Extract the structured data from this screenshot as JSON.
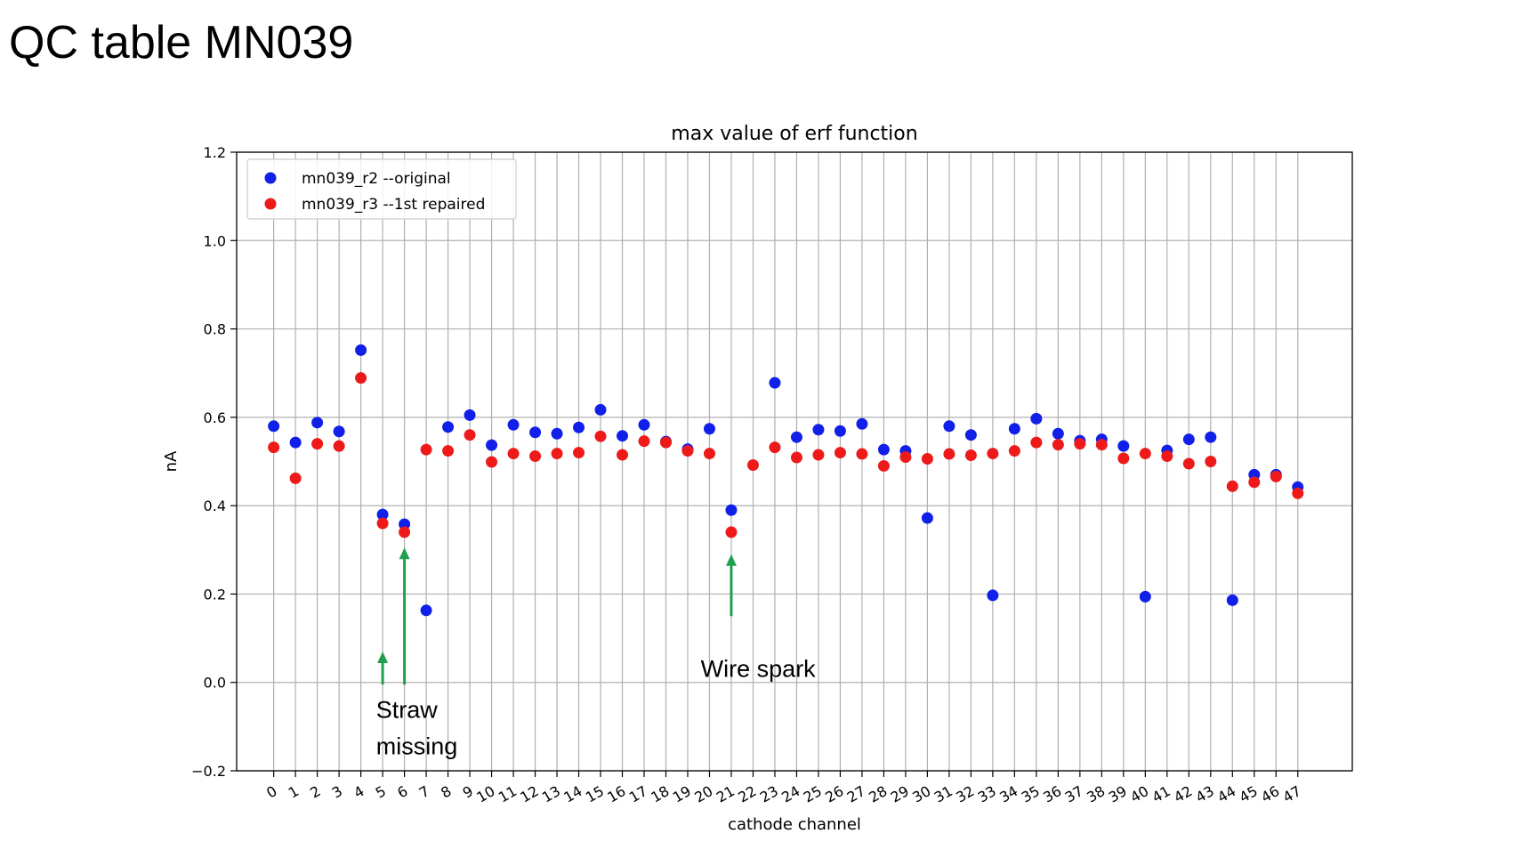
{
  "slide": {
    "title": "QC table MN039"
  },
  "chart_data": {
    "type": "scatter",
    "title": "max value of erf function",
    "xlabel": "cathode channel",
    "ylabel": "nA",
    "ylim": [
      -0.2,
      1.2
    ],
    "yticks": [
      -0.2,
      0.0,
      0.2,
      0.4,
      0.6,
      0.8,
      1.0,
      1.2
    ],
    "ytick_labels": [
      "−0.2",
      "0.0",
      "0.2",
      "0.4",
      "0.6",
      "0.8",
      "1.0",
      "1.2"
    ],
    "xticks": [
      0,
      1,
      2,
      3,
      4,
      5,
      6,
      7,
      8,
      9,
      10,
      11,
      12,
      13,
      14,
      15,
      16,
      17,
      18,
      19,
      20,
      21,
      22,
      23,
      24,
      25,
      26,
      27,
      28,
      29,
      30,
      31,
      32,
      33,
      34,
      35,
      36,
      37,
      38,
      39,
      40,
      41,
      42,
      43,
      44,
      45,
      46,
      47
    ],
    "xlim": [
      -1.7,
      49.5
    ],
    "grid": true,
    "legend_position": "top-left",
    "series": [
      {
        "name": "mn039_r2 --original",
        "color": "#1020e8",
        "points": [
          [
            0,
            0.58
          ],
          [
            1,
            0.543
          ],
          [
            2,
            0.588
          ],
          [
            3,
            0.568
          ],
          [
            4,
            0.752
          ],
          [
            5,
            0.38
          ],
          [
            6,
            0.358
          ],
          [
            7,
            0.163
          ],
          [
            8,
            0.578
          ],
          [
            9,
            0.605
          ],
          [
            10,
            0.537
          ],
          [
            11,
            0.583
          ],
          [
            12,
            0.566
          ],
          [
            13,
            0.563
          ],
          [
            14,
            0.577
          ],
          [
            15,
            0.617
          ],
          [
            16,
            0.558
          ],
          [
            17,
            0.583
          ],
          [
            18,
            0.545
          ],
          [
            19,
            0.528
          ],
          [
            20,
            0.574
          ],
          [
            21,
            0.39
          ],
          [
            23,
            0.678
          ],
          [
            24,
            0.555
          ],
          [
            25,
            0.572
          ],
          [
            26,
            0.569
          ],
          [
            27,
            0.585
          ],
          [
            28,
            0.527
          ],
          [
            29,
            0.524
          ],
          [
            30,
            0.372
          ],
          [
            31,
            0.58
          ],
          [
            32,
            0.56
          ],
          [
            33,
            0.197
          ],
          [
            34,
            0.574
          ],
          [
            35,
            0.597
          ],
          [
            36,
            0.563
          ],
          [
            37,
            0.547
          ],
          [
            38,
            0.55
          ],
          [
            39,
            0.535
          ],
          [
            40,
            0.194
          ],
          [
            41,
            0.525
          ],
          [
            42,
            0.55
          ],
          [
            43,
            0.555
          ],
          [
            44,
            0.186
          ],
          [
            45,
            0.47
          ],
          [
            46,
            0.47
          ],
          [
            47,
            0.442
          ]
        ]
      },
      {
        "name": "mn039_r3 --1st repaired",
        "color": "#ee1a1a",
        "points": [
          [
            0,
            0.532
          ],
          [
            1,
            0.462
          ],
          [
            2,
            0.54
          ],
          [
            3,
            0.535
          ],
          [
            4,
            0.689
          ],
          [
            5,
            0.36
          ],
          [
            6,
            0.34
          ],
          [
            7,
            0.527
          ],
          [
            8,
            0.524
          ],
          [
            9,
            0.56
          ],
          [
            10,
            0.499
          ],
          [
            11,
            0.518
          ],
          [
            12,
            0.512
          ],
          [
            13,
            0.518
          ],
          [
            14,
            0.52
          ],
          [
            15,
            0.557
          ],
          [
            16,
            0.515
          ],
          [
            17,
            0.546
          ],
          [
            18,
            0.543
          ],
          [
            19,
            0.524
          ],
          [
            20,
            0.518
          ],
          [
            21,
            0.34
          ],
          [
            22,
            0.492
          ],
          [
            23,
            0.532
          ],
          [
            24,
            0.509
          ],
          [
            25,
            0.515
          ],
          [
            26,
            0.52
          ],
          [
            27,
            0.517
          ],
          [
            28,
            0.49
          ],
          [
            29,
            0.51
          ],
          [
            30,
            0.506
          ],
          [
            31,
            0.517
          ],
          [
            32,
            0.514
          ],
          [
            33,
            0.518
          ],
          [
            34,
            0.524
          ],
          [
            35,
            0.543
          ],
          [
            36,
            0.538
          ],
          [
            37,
            0.54
          ],
          [
            38,
            0.538
          ],
          [
            39,
            0.507
          ],
          [
            40,
            0.518
          ],
          [
            41,
            0.512
          ],
          [
            42,
            0.495
          ],
          [
            43,
            0.5
          ],
          [
            44,
            0.444
          ],
          [
            45,
            0.453
          ],
          [
            46,
            0.466
          ],
          [
            47,
            0.428
          ]
        ]
      }
    ],
    "annotations": [
      {
        "lines": [
          "Straw",
          "missing"
        ],
        "arrows": [
          {
            "x": 5,
            "y_from": -0.005,
            "y_to": 0.07
          },
          {
            "x": 6,
            "y_from": -0.005,
            "y_to": 0.305
          }
        ]
      },
      {
        "lines": [
          "Wire spark"
        ],
        "arrows": [
          {
            "x": 21,
            "y_from": 0.15,
            "y_to": 0.29
          }
        ]
      }
    ],
    "arrow_color": "#1fa050"
  }
}
